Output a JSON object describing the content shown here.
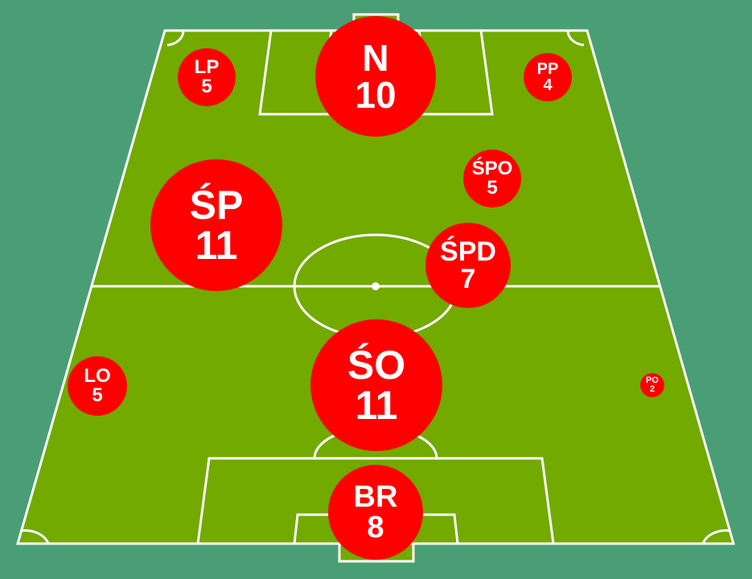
{
  "colors": {
    "background": "#4a9e76",
    "pitch": "#72aa00",
    "lines": "#ffffff",
    "bubble": "#ff0000",
    "bubble_text": "#ffffff"
  },
  "positions": [
    {
      "label": "N",
      "count": "10"
    },
    {
      "label": "LP",
      "count": "5"
    },
    {
      "label": "PP",
      "count": "4"
    },
    {
      "label": "ŚPO",
      "count": "5"
    },
    {
      "label": "ŚP",
      "count": "11"
    },
    {
      "label": "ŚPD",
      "count": "7"
    },
    {
      "label": "LO",
      "count": "5"
    },
    {
      "label": "ŚO",
      "count": "11"
    },
    {
      "label": "PO",
      "count": "2"
    },
    {
      "label": "BR",
      "count": "8"
    }
  ]
}
